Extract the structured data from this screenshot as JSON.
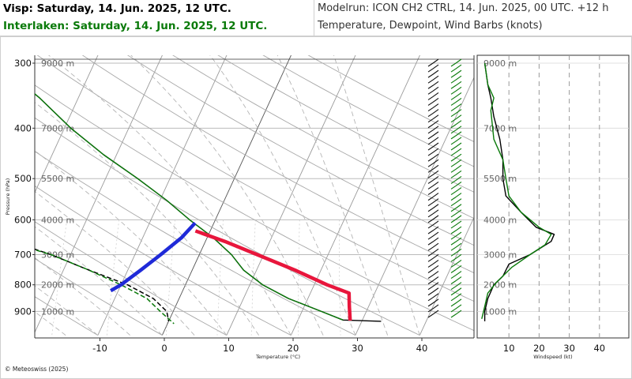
{
  "header": {
    "station1": "Visp: Saturday, 14. Jun. 2025, 12 UTC.",
    "station2": "Interlaken: Saturday, 14. Jun. 2025, 12 UTC.",
    "modelrun": "Modelrun: ICON CH2 CTRL, 14. Jun. 2025, 00 UTC. +12 h",
    "variables": "Temperature, Dewpoint, Wind Barbs (knots)"
  },
  "footer": {
    "copyright": "© Meteoswiss (2025)"
  },
  "colors": {
    "station1": "#000000",
    "station2": "#0a7a0a",
    "parcel_dry": "#e8163c",
    "parcel_moist": "#1f2ad8",
    "grid": "#999999"
  },
  "chart_data": [
    {
      "type": "line",
      "subtype": "skew-T log-p sounding",
      "xlabel": "Temperature (°C)",
      "ylabel": "Pressure (hPa)",
      "xlim": [
        -20,
        45
      ],
      "ylim": [
        300,
        980
      ],
      "y_scale": "log",
      "x_ticks": [
        -10,
        0,
        10,
        20,
        30,
        40
      ],
      "y_ticks": [
        300,
        400,
        500,
        600,
        700,
        800,
        900
      ],
      "height_labels": [
        {
          "p": 300,
          "label": "9000 m"
        },
        {
          "p": 400,
          "label": "7000 m"
        },
        {
          "p": 500,
          "label": "5500 m"
        },
        {
          "p": 600,
          "label": "4000 m"
        },
        {
          "p": 700,
          "label": "3000 m"
        },
        {
          "p": 800,
          "label": "2000 m"
        },
        {
          "p": 900,
          "label": "1000 m"
        }
      ],
      "series": [
        {
          "name": "Visp",
          "kind": "temperature",
          "color": "#000000",
          "points": [
            [
              300,
              -45
            ],
            [
              350,
              -36
            ],
            [
              400,
              -29
            ],
            [
              450,
              -22
            ],
            [
              500,
              -15
            ],
            [
              550,
              -9
            ],
            [
              600,
              -4
            ],
            [
              650,
              1
            ],
            [
              700,
              5
            ],
            [
              750,
              8
            ],
            [
              800,
              12
            ],
            [
              850,
              17
            ],
            [
              900,
              23
            ],
            [
              935,
              27
            ],
            [
              940,
              33
            ]
          ]
        },
        {
          "name": "Visp",
          "kind": "dewpoint",
          "color": "#000000",
          "points": [
            [
              300,
              -51
            ],
            [
              330,
              -52
            ],
            [
              360,
              -46
            ],
            [
              400,
              -42
            ],
            [
              430,
              -50
            ],
            [
              460,
              -58
            ],
            [
              500,
              -55
            ],
            [
              550,
              -50
            ],
            [
              600,
              -40
            ],
            [
              650,
              -32
            ],
            [
              700,
              -23
            ],
            [
              750,
              -16
            ],
            [
              800,
              -9
            ],
            [
              850,
              -4
            ],
            [
              900,
              -1
            ],
            [
              940,
              0
            ]
          ]
        },
        {
          "name": "Interlaken",
          "kind": "temperature",
          "color": "#0a7a0a",
          "points": [
            [
              300,
              -45
            ],
            [
              350,
              -36
            ],
            [
              400,
              -29
            ],
            [
              450,
              -22
            ],
            [
              500,
              -15
            ],
            [
              550,
              -9
            ],
            [
              600,
              -4
            ],
            [
              650,
              1
            ],
            [
              700,
              5
            ],
            [
              750,
              8
            ],
            [
              800,
              12
            ],
            [
              850,
              17
            ],
            [
              900,
              23
            ],
            [
              935,
              27
            ]
          ]
        },
        {
          "name": "Interlaken",
          "kind": "dewpoint",
          "color": "#0a7a0a",
          "points": [
            [
              300,
              -54
            ],
            [
              330,
              -58
            ],
            [
              360,
              -50
            ],
            [
              400,
              -45
            ],
            [
              440,
              -48
            ],
            [
              470,
              -62
            ],
            [
              500,
              -64
            ],
            [
              550,
              -55
            ],
            [
              600,
              -42
            ],
            [
              650,
              -33
            ],
            [
              700,
              -23
            ],
            [
              750,
              -16
            ],
            [
              800,
              -10
            ],
            [
              850,
              -5
            ],
            [
              900,
              -2
            ],
            [
              950,
              1
            ]
          ]
        },
        {
          "name": "Parcel (dry adiabat)",
          "kind": "parcel",
          "color": "#e8163c",
          "points": [
            [
              632,
              -2
            ],
            [
              660,
              3
            ],
            [
              700,
              9
            ],
            [
              750,
              16
            ],
            [
              800,
              22
            ],
            [
              830,
              26
            ],
            [
              880,
              27
            ],
            [
              930,
              28
            ]
          ]
        },
        {
          "name": "Parcel (moist ascent)",
          "kind": "parcel",
          "color": "#1f2ad8",
          "points": [
            [
              612,
              -3
            ],
            [
              650,
              -4
            ],
            [
              700,
              -6
            ],
            [
              750,
              -8
            ],
            [
              800,
              -10
            ],
            [
              818,
              -11
            ]
          ]
        }
      ]
    },
    {
      "type": "line",
      "subtype": "wind speed profile",
      "xlabel": "Windspeed (kt)",
      "xlim": [
        0,
        45
      ],
      "x_ticks": [
        10,
        20,
        30,
        40
      ],
      "y_scale": "log",
      "ylim": [
        300,
        980
      ],
      "series": [
        {
          "name": "Visp",
          "color": "#000000",
          "points": [
            [
              300,
              2
            ],
            [
              330,
              3
            ],
            [
              350,
              4
            ],
            [
              380,
              5
            ],
            [
              420,
              7
            ],
            [
              460,
              8
            ],
            [
              500,
              8
            ],
            [
              540,
              9
            ],
            [
              580,
              14
            ],
            [
              620,
              19
            ],
            [
              640,
              25
            ],
            [
              660,
              24
            ],
            [
              700,
              17
            ],
            [
              730,
              10
            ],
            [
              770,
              8
            ],
            [
              800,
              5
            ],
            [
              850,
              3
            ],
            [
              900,
              2
            ],
            [
              940,
              2
            ]
          ]
        },
        {
          "name": "Interlaken",
          "color": "#0a7a0a",
          "points": [
            [
              300,
              2
            ],
            [
              330,
              3
            ],
            [
              350,
              5
            ],
            [
              370,
              4
            ],
            [
              420,
              5
            ],
            [
              460,
              8
            ],
            [
              500,
              9
            ],
            [
              540,
              10
            ],
            [
              580,
              14
            ],
            [
              620,
              20
            ],
            [
              640,
              24
            ],
            [
              670,
              22
            ],
            [
              700,
              17
            ],
            [
              740,
              11
            ],
            [
              790,
              6
            ],
            [
              830,
              3
            ],
            [
              880,
              2
            ],
            [
              930,
              1
            ]
          ]
        }
      ]
    }
  ]
}
